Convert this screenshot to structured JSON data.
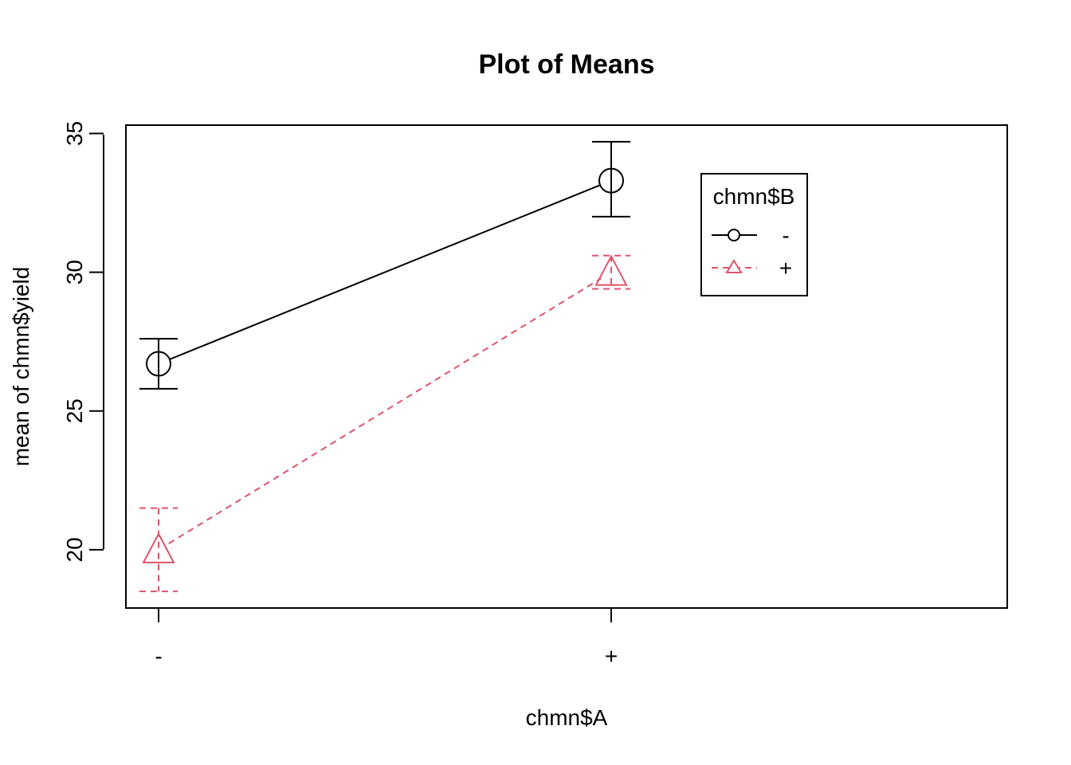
{
  "chart_data": {
    "type": "line",
    "title": "Plot of Means",
    "xlabel": "chmn$A",
    "ylabel": "mean of chmn$yield",
    "categories": [
      "-",
      "+"
    ],
    "ylim": [
      17.9,
      35.3
    ],
    "yticks": [
      "20",
      "25",
      "30",
      "35"
    ],
    "grid": false,
    "legend": {
      "title": "chmn$B",
      "position": "top-right"
    },
    "series": [
      {
        "name": "-",
        "values": [
          26.7,
          33.3
        ],
        "error_low": [
          25.8,
          32.0
        ],
        "error_high": [
          27.6,
          34.7
        ],
        "color": "#000000",
        "marker": "circle",
        "line": "solid"
      },
      {
        "name": "+",
        "values": [
          20.0,
          30.0
        ],
        "error_low": [
          18.5,
          29.4
        ],
        "error_high": [
          21.5,
          30.6
        ],
        "color": "#DF536B",
        "marker": "triangle",
        "line": "dashed"
      }
    ]
  }
}
